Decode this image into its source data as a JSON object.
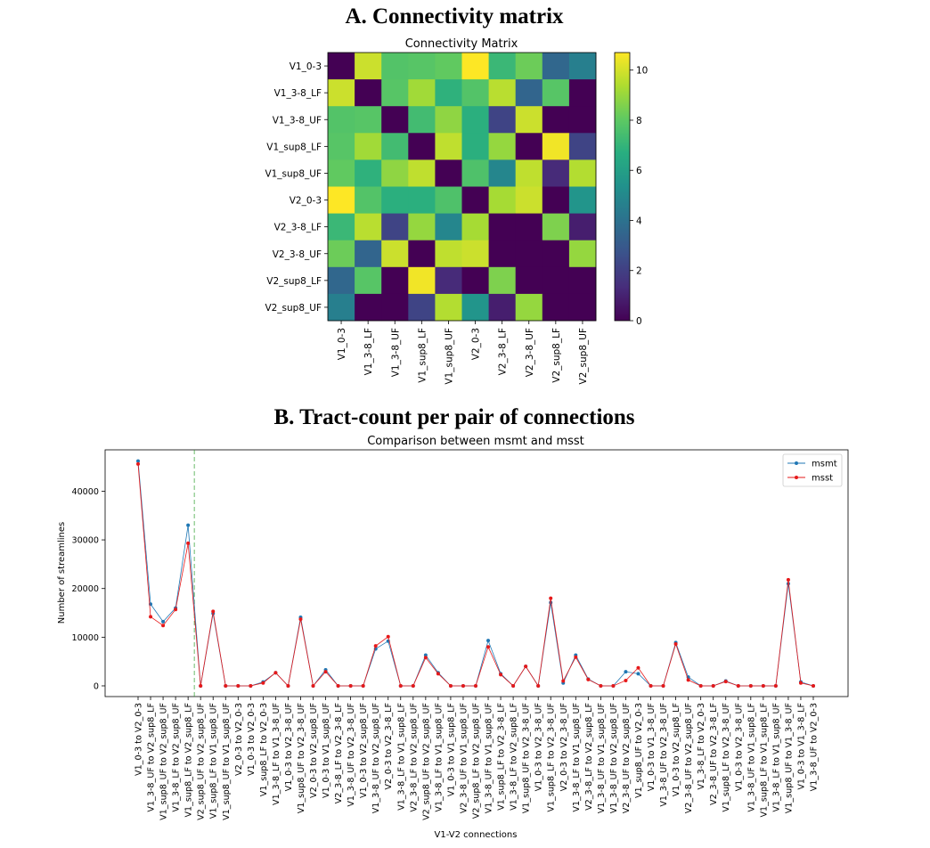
{
  "panels": {
    "a_title": "A. Connectivity matrix",
    "b_title": "B. Tract-count per pair of connections"
  },
  "chart_data": [
    {
      "type": "heatmap",
      "title": "Connectivity Matrix",
      "labels": [
        "V1_0-3",
        "V1_3-8_LF",
        "V1_3-8_UF",
        "V1_sup8_LF",
        "V1_sup8_UF",
        "V2_0-3",
        "V2_3-8_LF",
        "V2_3-8_UF",
        "V2_sup8_LF",
        "V2_sup8_UF"
      ],
      "values": [
        [
          0,
          9.9,
          7.8,
          7.9,
          8.1,
          10.7,
          7.2,
          8.3,
          3.6,
          4.6
        ],
        [
          9.9,
          0,
          7.9,
          9.2,
          6.9,
          7.8,
          9.6,
          3.5,
          7.9,
          0
        ],
        [
          7.8,
          7.9,
          0,
          7.4,
          8.9,
          6.8,
          2.2,
          9.9,
          0,
          0
        ],
        [
          7.9,
          9.2,
          7.4,
          0,
          9.7,
          6.8,
          9.0,
          0,
          10.5,
          2.2
        ],
        [
          8.1,
          6.9,
          8.9,
          9.7,
          0,
          7.7,
          4.9,
          9.7,
          1.3,
          9.5
        ],
        [
          10.7,
          7.8,
          6.8,
          6.8,
          7.7,
          0,
          9.3,
          9.9,
          0,
          5.6
        ],
        [
          7.2,
          9.6,
          2.2,
          9.0,
          4.9,
          9.3,
          0,
          0,
          8.6,
          0.9
        ],
        [
          8.3,
          3.5,
          9.9,
          0,
          9.7,
          9.9,
          0,
          0,
          0,
          9.0
        ],
        [
          3.6,
          7.9,
          0,
          10.5,
          1.3,
          0,
          8.6,
          0,
          0,
          0
        ],
        [
          4.6,
          0,
          0,
          2.2,
          9.5,
          5.6,
          0.9,
          9.0,
          0,
          0
        ]
      ],
      "colorbar": {
        "min": 0,
        "max": 10.7,
        "ticks": [
          0,
          2,
          4,
          6,
          8,
          10
        ]
      },
      "colormap": "viridis"
    },
    {
      "type": "line",
      "title": "Comparison between msmt and msst",
      "xlabel": "V1-V2 connections",
      "ylabel": "Number of streamlines",
      "yticks": [
        0,
        10000,
        20000,
        30000,
        40000
      ],
      "ylim": [
        -2200,
        48500
      ],
      "legend": "top-right",
      "vline_after_index": 4,
      "categories": [
        "V1_0-3 to V2_0-3",
        "V1_3-8_UF to V2_sup8_LF",
        "V1_sup8_UF to V2_sup8_UF",
        "V1_3-8_LF to V2_sup8_UF",
        "V1_sup8_LF to V2_sup8_LF",
        "V2_sup8_UF to V2_sup8_UF",
        "V1_sup8_LF to V1_sup8_UF",
        "V1_sup8_UF to V1_sup8_UF",
        "V2_0-3 to V2_0-3",
        "V1_0-3 to V2_0-3",
        "V1_sup8_LF to V2_0-3",
        "V1_3-8_LF to V1_3-8_UF",
        "V1_0-3 to V2_3-8_UF",
        "V1_sup8_UF to V2_3-8_UF",
        "V2_0-3 to V2_sup8_UF",
        "V1_0-3 to V1_sup8_UF",
        "V2_3-8_LF to V2_3-8_LF",
        "V1_3-8_UF to V2_3-8_UF",
        "V1_0-3 to V2_sup8_UF",
        "V1_3-8_UF to V2_sup8_UF",
        "V2_0-3 to V2_3-8_LF",
        "V1_3-8_LF to V1_sup8_LF",
        "V2_3-8_LF to V2_sup8_UF",
        "V2_sup8_UF to V2_sup8_UF",
        "V1_3-8_LF to V1_sup8_UF",
        "V1_0-3 to V1_sup8_LF",
        "V2_3-8_UF to V1_sup8_UF",
        "V2_sup8_LF to V2_sup8_UF",
        "V1_3-8_UF to V1_sup8_UF",
        "V1_sup8_LF to V2_3-8_LF",
        "V1_3-8_LF to V2_sup8_LF",
        "V1_sup8_UF to V2_3-8_UF",
        "V1_0-3 to V2_3-8_UF",
        "V1_sup8_LF to V2_3-8_UF",
        "V2_0-3 to V2_3-8_UF",
        "V1_3-8_LF to V1_sup8_UF",
        "V2_3-8_LF to V2_sup8_LF",
        "V1_3-8_UF to V1_sup8_UF",
        "V1_3-8_UF to V2_sup8_UF",
        "V2_3-8_UF to V2_sup8_UF",
        "V1_sup8_UF to V2_0-3",
        "V1_0-3 to V1_3-8_UF",
        "V1_3-8_UF to V2_3-8_UF",
        "V1_0-3 to V2_sup8_LF",
        "V2_3-8_UF to V2_sup8_UF",
        "V1_3-8_LF to V2_0-3",
        "V2_3-8_UF to V2_3-8_LF",
        "V1_sup8_LF to V2_3-8_UF",
        "V1_0-3 to V2_3-8_UF",
        "V1_3-8_UF to V1_sup8_LF",
        "V1_sup8_LF to V1_sup8_LF",
        "V1_3-8_LF to V1_sup8_UF",
        "V1_sup8_UF to V1_3-8_UF",
        "V1_0-3 to V1_3-8_LF",
        "V1_3-8_UF to V2_0-3"
      ],
      "series": [
        {
          "name": "msmt",
          "color": "#1f77b4",
          "values": [
            46200,
            16800,
            13200,
            16000,
            33000,
            0,
            14900,
            0,
            0,
            0,
            800,
            2700,
            0,
            14100,
            0,
            3300,
            0,
            0,
            0,
            7600,
            9200,
            0,
            0,
            6300,
            2700,
            0,
            0,
            0,
            9300,
            2500,
            0,
            4000,
            0,
            17100,
            600,
            6300,
            1400,
            0,
            0,
            2900,
            2500,
            0,
            0,
            8900,
            1800,
            0,
            0,
            1000,
            0,
            0,
            0,
            0,
            21000,
            800,
            0
          ]
        },
        {
          "name": "msst",
          "color": "#e6191a",
          "values": [
            45600,
            14200,
            12400,
            15700,
            29300,
            0,
            15300,
            0,
            0,
            0,
            600,
            2700,
            0,
            13700,
            0,
            2900,
            0,
            0,
            0,
            8200,
            10100,
            0,
            0,
            5800,
            2500,
            0,
            0,
            0,
            8000,
            2300,
            0,
            4000,
            0,
            18000,
            1000,
            5900,
            1300,
            0,
            0,
            1100,
            3700,
            0,
            0,
            8600,
            1200,
            0,
            0,
            900,
            0,
            0,
            0,
            0,
            21800,
            600,
            0
          ]
        }
      ]
    }
  ]
}
